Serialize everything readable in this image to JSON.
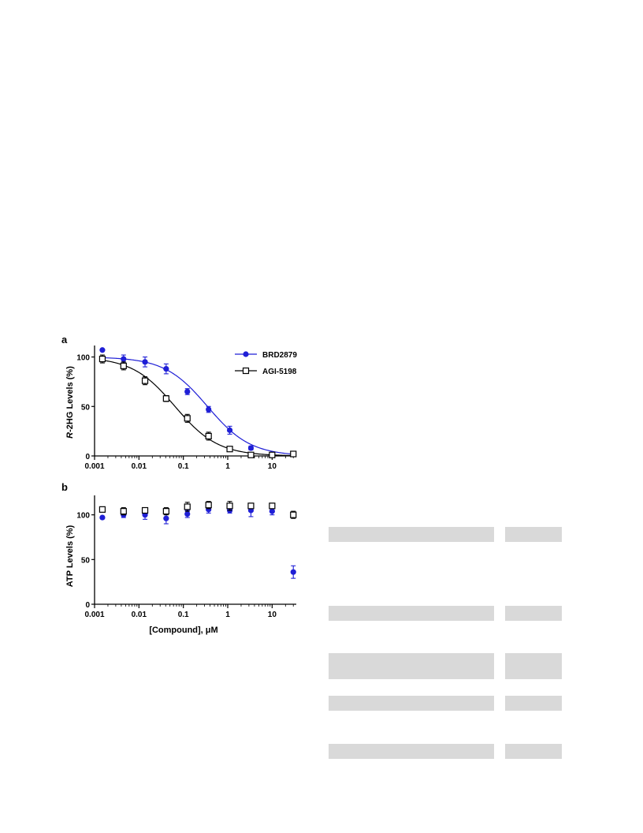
{
  "panels": [
    {
      "id": "a",
      "panel_label": "a",
      "ylabel_italic": "R",
      "ylabel_rest": "-2HG Levels (%)",
      "xlabel": "",
      "legend": [
        "BRD2879",
        "AGI-5198"
      ],
      "x_ticks": [
        "0.001",
        "0.01",
        "0.1",
        "1",
        "10"
      ],
      "y_ticks": [
        "0",
        "50",
        "100"
      ]
    },
    {
      "id": "b",
      "panel_label": "b",
      "ylabel_italic": "",
      "ylabel_rest": "ATP Levels (%)",
      "xlabel": "[Compound], μM",
      "legend": [],
      "x_ticks": [
        "0.001",
        "0.01",
        "0.1",
        "1",
        "10"
      ],
      "y_ticks": [
        "0",
        "50",
        "100"
      ]
    }
  ],
  "chart_data": [
    {
      "type": "scatter",
      "panel": "a",
      "xscale": "log",
      "xlim": [
        0.001,
        35
      ],
      "ylim": [
        0,
        110
      ],
      "xlabel": "",
      "ylabel": "R-2HG Levels (%)",
      "legend_position": "top-right",
      "series": [
        {
          "name": "BRD2879",
          "color": "#1f1fd6",
          "marker": "filled-circle",
          "fit": {
            "top": 100,
            "bottom": 0,
            "ic50": 0.35,
            "hill": 0.9
          },
          "x": [
            0.0015,
            0.0045,
            0.0137,
            0.041,
            0.123,
            0.37,
            1.11,
            3.33,
            10,
            30
          ],
          "y": [
            107,
            98,
            95,
            88,
            65,
            47,
            26,
            8,
            2,
            2
          ],
          "err": [
            0,
            4,
            5,
            5,
            3,
            3,
            4,
            2,
            1,
            1
          ]
        },
        {
          "name": "AGI-5198",
          "color": "#000000",
          "marker": "open-square",
          "fit": {
            "top": 100,
            "bottom": 0,
            "ic50": 0.065,
            "hill": 0.9
          },
          "x": [
            0.0015,
            0.0045,
            0.0137,
            0.041,
            0.123,
            0.37,
            1.11,
            3.33,
            10,
            30
          ],
          "y": [
            98,
            91,
            76,
            58,
            38,
            20,
            7,
            1,
            1,
            2
          ],
          "err": [
            4,
            4,
            4,
            3,
            4,
            4,
            1,
            1,
            1,
            1
          ]
        }
      ]
    },
    {
      "type": "scatter",
      "panel": "b",
      "xscale": "log",
      "xlim": [
        0.001,
        35
      ],
      "ylim": [
        0,
        120
      ],
      "xlabel": "[Compound], μM",
      "ylabel": "ATP Levels (%)",
      "series": [
        {
          "color": "#1f1fd6",
          "marker": "filled-circle",
          "x": [
            0.0015,
            0.0045,
            0.0137,
            0.041,
            0.123,
            0.37,
            1.11,
            3.33,
            10,
            30
          ],
          "y": [
            97,
            100,
            100,
            96,
            101,
            106,
            105,
            105,
            104,
            36
          ],
          "err": [
            0,
            3,
            5,
            6,
            4,
            4,
            3,
            7,
            4,
            7
          ]
        },
        {
          "color": "#000000",
          "marker": "open-square",
          "x": [
            0.0015,
            0.0045,
            0.0137,
            0.041,
            0.123,
            0.37,
            1.11,
            3.33,
            10,
            30
          ],
          "y": [
            106,
            104,
            105,
            104,
            109,
            111,
            110,
            110,
            110,
            100
          ],
          "err": [
            0,
            4,
            3,
            4,
            5,
            4,
            5,
            3,
            3,
            4
          ]
        }
      ]
    }
  ],
  "gray_bars": [
    {
      "id": "bar-1"
    },
    {
      "id": "bar-2"
    },
    {
      "id": "bar-3"
    },
    {
      "id": "bar-4"
    },
    {
      "id": "bar-5"
    }
  ]
}
